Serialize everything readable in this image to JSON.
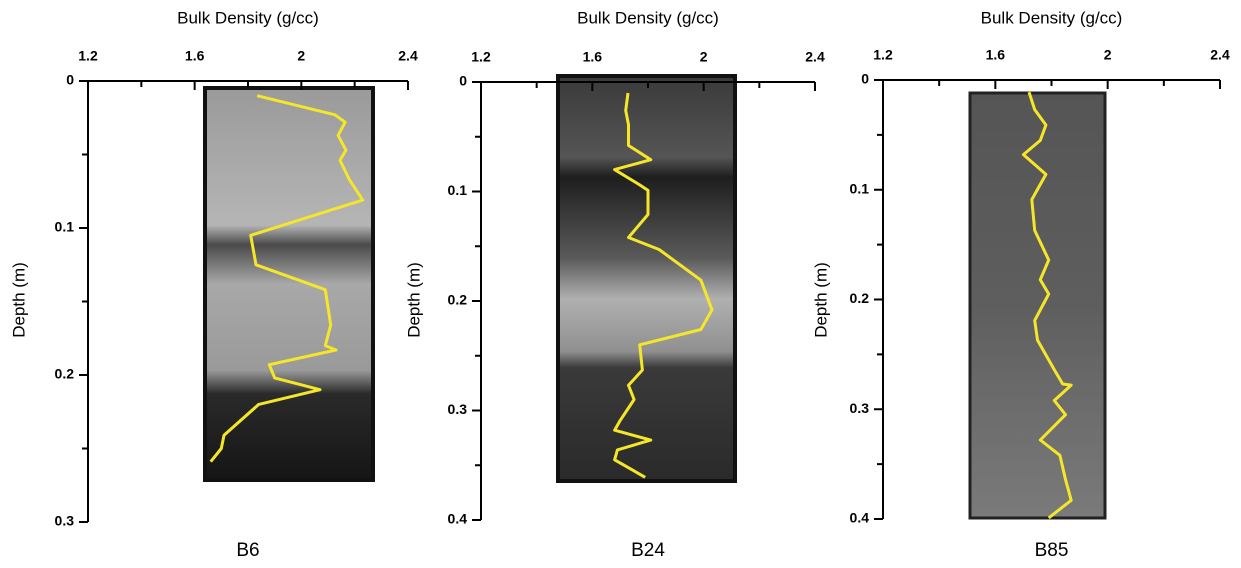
{
  "chart_data": [
    {
      "type": "line",
      "title": "B6",
      "xlabel": "Bulk Density (g/cc)",
      "ylabel": "Depth (m)",
      "xlim": [
        1.2,
        2.4
      ],
      "xticks": [
        1.2,
        1.6,
        2,
        2.4
      ],
      "xminor": [
        1.4,
        1.8,
        2.2
      ],
      "ylim": [
        0,
        0.3
      ],
      "yticks": [
        0,
        0.1,
        0.2,
        0.3
      ],
      "yminor": [
        0.05,
        0.15,
        0.25
      ],
      "y_inverted": true,
      "series": [
        {
          "color": "#f5e62a",
          "x": [
            1.834,
            2.126,
            2.164,
            2.138,
            2.167,
            2.145,
            2.18,
            2.23,
            1.81,
            1.83,
            2.09,
            2.11,
            2.09,
            2.13,
            1.88,
            1.9,
            2.07,
            1.84,
            1.71,
            1.7,
            1.66
          ],
          "values": [
            0.01,
            0.023,
            0.028,
            0.037,
            0.047,
            0.054,
            0.067,
            0.081,
            0.105,
            0.125,
            0.142,
            0.166,
            0.18,
            0.183,
            0.193,
            0.202,
            0.21,
            0.22,
            0.241,
            0.25,
            0.259
          ]
        }
      ]
    },
    {
      "type": "line",
      "title": "B24",
      "xlabel": "Bulk Density (g/cc)",
      "ylabel": "Depth (m)",
      "xlim": [
        1.2,
        2.4
      ],
      "xticks": [
        1.2,
        1.6,
        2,
        2.4
      ],
      "xminor": [
        1.4,
        1.8,
        2.2
      ],
      "ylim": [
        0,
        0.4
      ],
      "yticks": [
        0,
        0.1,
        0.2,
        0.3,
        0.4
      ],
      "yminor": [
        0.05,
        0.15,
        0.25,
        0.35
      ],
      "y_inverted": true,
      "series": [
        {
          "color": "#f5e62a",
          "x": [
            1.728,
            1.72,
            1.73,
            1.73,
            1.81,
            1.68,
            1.77,
            1.8,
            1.8,
            1.73,
            1.84,
            1.99,
            2.03,
            1.99,
            1.77,
            1.78,
            1.73,
            1.75,
            1.7,
            1.68,
            1.81,
            1.69,
            1.68,
            1.79
          ],
          "values": [
            0.01,
            0.026,
            0.039,
            0.058,
            0.071,
            0.08,
            0.094,
            0.099,
            0.121,
            0.142,
            0.153,
            0.181,
            0.208,
            0.226,
            0.24,
            0.263,
            0.277,
            0.29,
            0.309,
            0.318,
            0.327,
            0.336,
            0.345,
            0.361
          ]
        }
      ]
    },
    {
      "type": "line",
      "title": "B85",
      "xlabel": "Bulk Density (g/cc)",
      "ylabel": "Depth (m)",
      "xlim": [
        1.2,
        2.4
      ],
      "xticks": [
        1.2,
        1.6,
        2,
        2.4
      ],
      "xminor": [
        1.4,
        1.8,
        2.2
      ],
      "ylim": [
        0,
        0.4
      ],
      "yticks": [
        0,
        0.1,
        0.2,
        0.3,
        0.4
      ],
      "yminor": [
        0.05,
        0.15,
        0.25,
        0.35
      ],
      "y_inverted": true,
      "series": [
        {
          "color": "#f5e62a",
          "x": [
            1.72,
            1.74,
            1.78,
            1.76,
            1.7,
            1.74,
            1.78,
            1.73,
            1.74,
            1.79,
            1.76,
            1.79,
            1.74,
            1.75,
            1.81,
            1.84,
            1.87,
            1.81,
            1.85,
            1.76,
            1.83,
            1.85,
            1.87,
            1.79
          ],
          "values": [
            0.011,
            0.027,
            0.041,
            0.055,
            0.068,
            0.077,
            0.086,
            0.109,
            0.137,
            0.164,
            0.182,
            0.195,
            0.219,
            0.237,
            0.264,
            0.277,
            0.278,
            0.292,
            0.305,
            0.328,
            0.342,
            0.364,
            0.383,
            0.399
          ]
        }
      ]
    }
  ]
}
